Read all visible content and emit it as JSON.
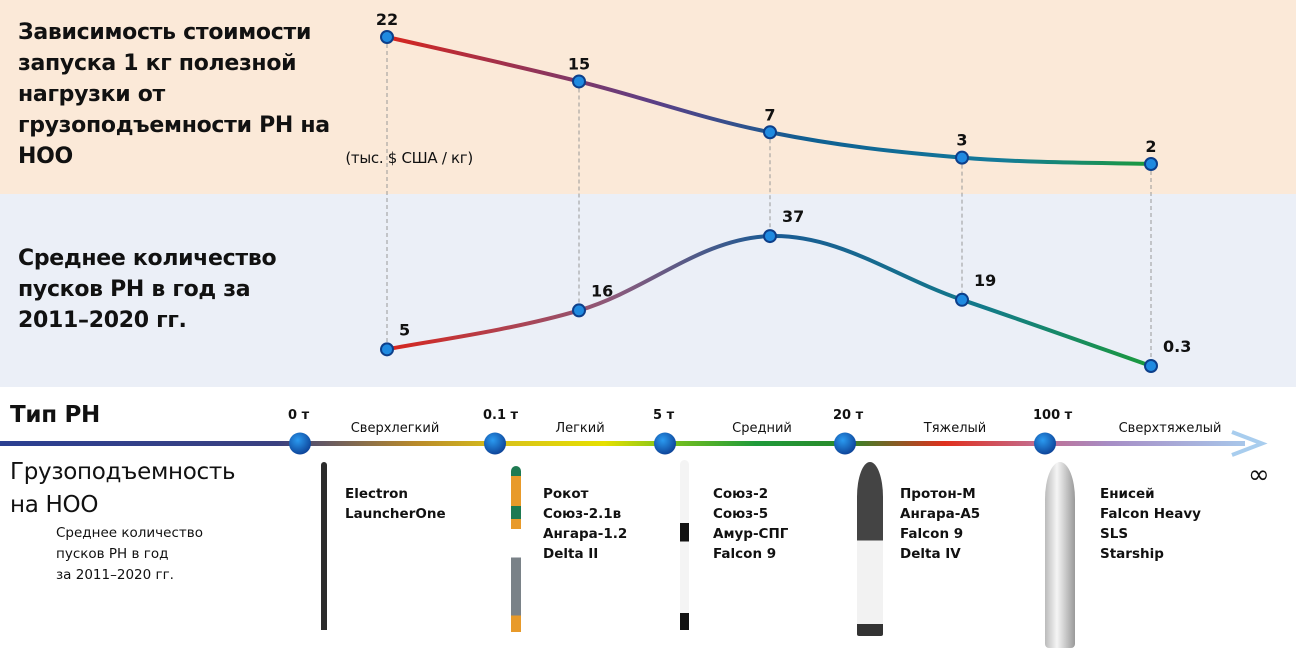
{
  "chart_data": [
    {
      "type": "line",
      "title": "Зависимость стоимости запуска 1 кг полезной нагрузки от грузоподъемности РН на НОО",
      "unit": "(тыс. $ США / кг)",
      "categories": [
        "Сверхлегкий",
        "Легкий",
        "Средний",
        "Тяжелый",
        "Сверхтяжелый"
      ],
      "values": [
        22,
        15,
        7,
        3,
        2
      ],
      "value_labels": [
        "22",
        "15",
        "7",
        "3",
        "2"
      ],
      "colors": [
        "#d7261e",
        "#5b3f86",
        "#0f5f92",
        "#137a9a",
        "#1b9a3c"
      ]
    },
    {
      "type": "line",
      "title": "Среднее количество пусков РН в год за 2011–2020 гг.",
      "categories": [
        "Сверхлегкий",
        "Легкий",
        "Средний",
        "Тяжелый",
        "Сверхтяжелый"
      ],
      "values": [
        5,
        16,
        37,
        19,
        0.3
      ],
      "value_labels": [
        "5",
        "16",
        "37",
        "19",
        "0.3"
      ],
      "colors": [
        "#d7261e",
        "#8a5a7c",
        "#1a5a94",
        "#137a8a",
        "#1b9a3c"
      ]
    }
  ],
  "axis": {
    "type_label": "Тип РН",
    "capacity_label": [
      "Грузоподъемность",
      "на НОО"
    ],
    "subnote": [
      "Среднее количество",
      "пусков РН в год",
      "за 2011–2020 гг."
    ],
    "infinity": "∞",
    "ticks": [
      "0 т",
      "0.1 т",
      "5 т",
      "20 т",
      "100 т"
    ],
    "classes": [
      "Сверхлегкий",
      "Легкий",
      "Средний",
      "Тяжелый",
      "Сверхтяжелый"
    ],
    "rockets": [
      [
        "Electron",
        "LauncherOne"
      ],
      [
        "Рокот",
        "Союз-2.1в",
        "Ангара-1.2",
        "Delta II"
      ],
      [
        "Союз-2",
        "Союз-5",
        "Амур-СПГ",
        "Falcon 9"
      ],
      [
        "Протон-М",
        "Ангара-А5",
        "Falcon 9",
        "Delta IV"
      ],
      [
        "Енисей",
        "Falcon Heavy",
        "SLS",
        "Starship"
      ]
    ]
  }
}
